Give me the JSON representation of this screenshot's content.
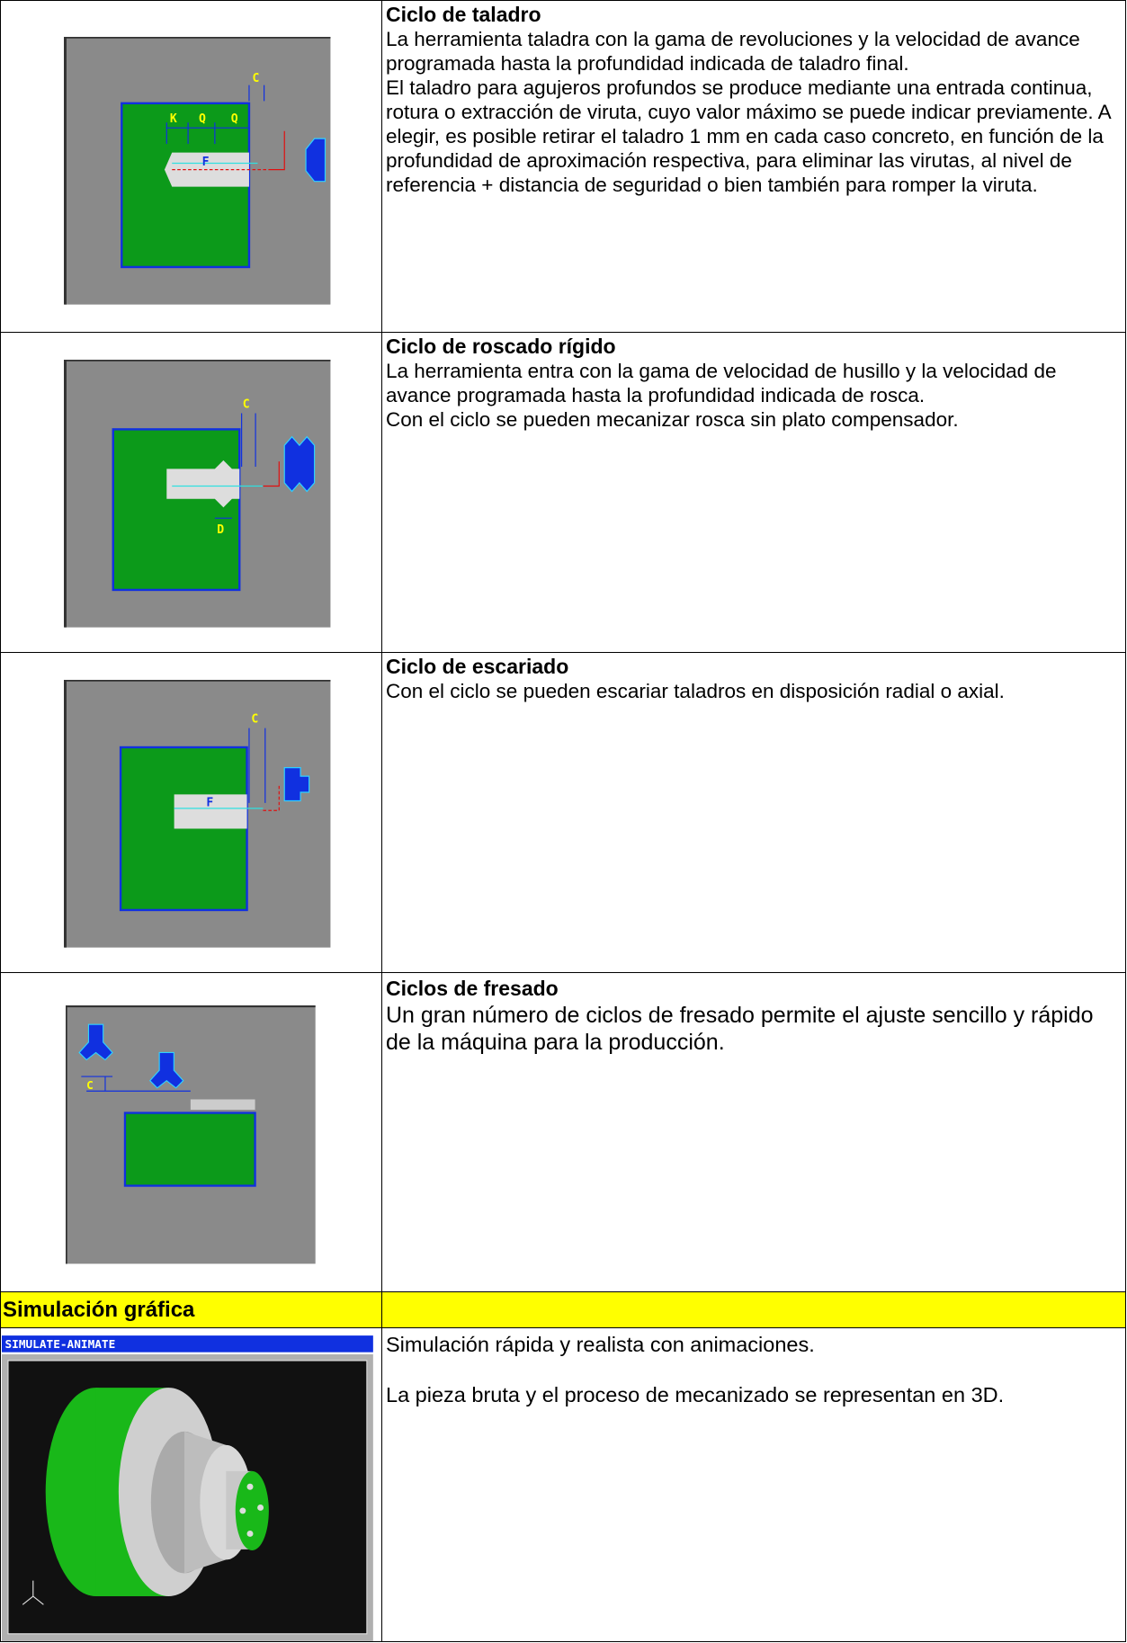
{
  "rows": [
    {
      "title": "Ciclo de taladro",
      "paragraphs": [
        "La herramienta taladra con la gama de revoluciones y la velocidad de avance programada hasta la profundidad indicada de taladro final.",
        "El taladro para agujeros profundos se produce mediante una entrada continua, rotura o extracción de viruta, cuyo valor máximo se puede indicar previamente. A elegir, es posible retirar el taladro 1 mm en cada caso concreto, en función de la profundidad de aproximación respectiva, para eliminar las virutas, al nivel de referencia + distancia de seguridad o bien también para romper la viruta."
      ],
      "figure_labels": [
        "K",
        "Q",
        "Q",
        "C",
        "F"
      ]
    },
    {
      "title": "Ciclo de roscado rígido",
      "paragraphs": [
        "La herramienta entra con la gama de velocidad de husillo y la velocidad de avance programada hasta la profundidad indicada de rosca.",
        "Con el ciclo se pueden mecanizar rosca sin plato compensador."
      ],
      "figure_labels": [
        "C",
        "D"
      ]
    },
    {
      "title": "Ciclo de escariado",
      "paragraphs": [
        "Con el ciclo se pueden escariar taladros en disposición radial o axial."
      ],
      "figure_labels": [
        "C",
        "F"
      ]
    },
    {
      "title": "Ciclos de fresado",
      "paragraphs": [
        "Un gran número de ciclos de fresado permite el ajuste sencillo y rápido de la máquina para la producción."
      ],
      "figure_labels": [
        "C"
      ]
    }
  ],
  "section": {
    "title": "Simulación gráfica",
    "paragraphs": [
      "Simulación rápida y realista con animaciones.",
      "La pieza bruta y el proceso de mecanizado se representan en 3D."
    ],
    "figure_labels": [
      "SIMULATE-ANIMATE"
    ]
  }
}
